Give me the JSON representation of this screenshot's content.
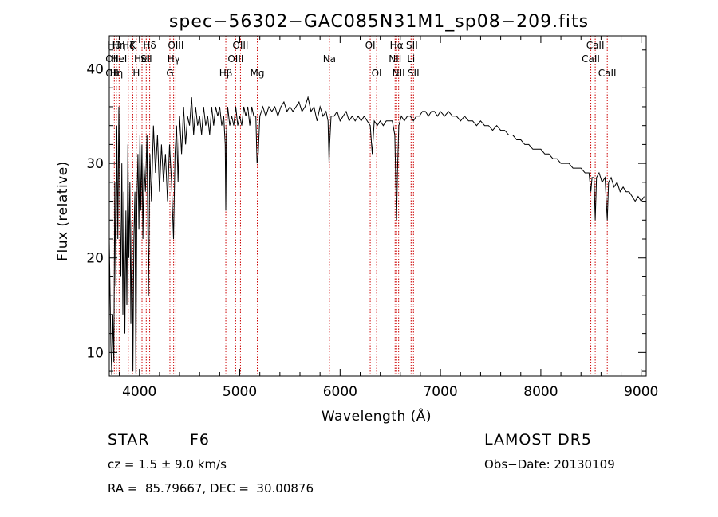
{
  "chart_data": {
    "type": "line",
    "title": "spec−56302−GAC085N31M1_sp08−209.fits",
    "xlabel": "Wavelength (Å)",
    "ylabel": "Flux (relative)",
    "xlim": [
      3700,
      9050
    ],
    "ylim": [
      7.5,
      43.5
    ],
    "xticks": [
      4000,
      5000,
      6000,
      7000,
      8000,
      9000
    ],
    "yticks": [
      10,
      20,
      30,
      40
    ],
    "grid": false,
    "series": [
      {
        "points": [
          [
            3700,
            22
          ],
          [
            3715,
            11
          ],
          [
            3725,
            7.6
          ],
          [
            3735,
            14
          ],
          [
            3745,
            9
          ],
          [
            3755,
            28
          ],
          [
            3765,
            17
          ],
          [
            3775,
            34
          ],
          [
            3785,
            22
          ],
          [
            3795,
            36
          ],
          [
            3805,
            26
          ],
          [
            3815,
            18
          ],
          [
            3825,
            30
          ],
          [
            3835,
            14
          ],
          [
            3845,
            27
          ],
          [
            3855,
            12
          ],
          [
            3865,
            25
          ],
          [
            3875,
            15
          ],
          [
            3885,
            32
          ],
          [
            3895,
            20
          ],
          [
            3905,
            28
          ],
          [
            3915,
            13
          ],
          [
            3925,
            24
          ],
          [
            3935,
            8
          ],
          [
            3945,
            22
          ],
          [
            3955,
            27
          ],
          [
            3965,
            7.8
          ],
          [
            3975,
            26
          ],
          [
            3985,
            31
          ],
          [
            3995,
            23
          ],
          [
            4005,
            33
          ],
          [
            4015,
            25
          ],
          [
            4025,
            32
          ],
          [
            4035,
            22
          ],
          [
            4045,
            30
          ],
          [
            4060,
            27
          ],
          [
            4075,
            33
          ],
          [
            4090,
            16
          ],
          [
            4105,
            31
          ],
          [
            4120,
            26
          ],
          [
            4140,
            34
          ],
          [
            4160,
            29
          ],
          [
            4180,
            33
          ],
          [
            4200,
            27
          ],
          [
            4220,
            32
          ],
          [
            4240,
            28
          ],
          [
            4260,
            31
          ],
          [
            4280,
            26
          ],
          [
            4300,
            32
          ],
          [
            4320,
            28
          ],
          [
            4340,
            22
          ],
          [
            4355,
            31
          ],
          [
            4370,
            34
          ],
          [
            4385,
            28
          ],
          [
            4400,
            35
          ],
          [
            4420,
            31
          ],
          [
            4440,
            36
          ],
          [
            4460,
            32
          ],
          [
            4480,
            35
          ],
          [
            4500,
            34
          ],
          [
            4520,
            37
          ],
          [
            4540,
            33
          ],
          [
            4560,
            36
          ],
          [
            4580,
            34
          ],
          [
            4600,
            35
          ],
          [
            4620,
            33
          ],
          [
            4640,
            36
          ],
          [
            4660,
            34
          ],
          [
            4680,
            35
          ],
          [
            4700,
            33
          ],
          [
            4720,
            36
          ],
          [
            4740,
            34
          ],
          [
            4760,
            36
          ],
          [
            4780,
            35
          ],
          [
            4800,
            36
          ],
          [
            4820,
            34
          ],
          [
            4840,
            35
          ],
          [
            4855,
            32
          ],
          [
            4861,
            25
          ],
          [
            4867,
            33
          ],
          [
            4880,
            36
          ],
          [
            4900,
            34
          ],
          [
            4920,
            35
          ],
          [
            4940,
            34
          ],
          [
            4960,
            36
          ],
          [
            4980,
            34
          ],
          [
            5000,
            35
          ],
          [
            5020,
            34
          ],
          [
            5040,
            36
          ],
          [
            5060,
            35
          ],
          [
            5080,
            36
          ],
          [
            5100,
            34
          ],
          [
            5120,
            36
          ],
          [
            5140,
            35
          ],
          [
            5160,
            35
          ],
          [
            5172,
            30
          ],
          [
            5184,
            31
          ],
          [
            5200,
            35
          ],
          [
            5230,
            36
          ],
          [
            5260,
            35
          ],
          [
            5290,
            36
          ],
          [
            5320,
            35.5
          ],
          [
            5350,
            36
          ],
          [
            5380,
            35
          ],
          [
            5410,
            36
          ],
          [
            5440,
            36.5
          ],
          [
            5470,
            35.5
          ],
          [
            5500,
            36
          ],
          [
            5530,
            35.5
          ],
          [
            5560,
            36
          ],
          [
            5590,
            36.5
          ],
          [
            5620,
            35.5
          ],
          [
            5650,
            36
          ],
          [
            5680,
            37
          ],
          [
            5710,
            35.5
          ],
          [
            5740,
            36
          ],
          [
            5770,
            34.5
          ],
          [
            5800,
            36
          ],
          [
            5830,
            35
          ],
          [
            5860,
            35.5
          ],
          [
            5880,
            34.5
          ],
          [
            5890,
            30
          ],
          [
            5896,
            32
          ],
          [
            5910,
            35
          ],
          [
            5940,
            35
          ],
          [
            5970,
            35.5
          ],
          [
            6000,
            34.5
          ],
          [
            6030,
            35
          ],
          [
            6060,
            35.5
          ],
          [
            6090,
            34.5
          ],
          [
            6120,
            35
          ],
          [
            6150,
            34.5
          ],
          [
            6180,
            35
          ],
          [
            6210,
            34.5
          ],
          [
            6240,
            35
          ],
          [
            6270,
            34.5
          ],
          [
            6300,
            34
          ],
          [
            6320,
            31
          ],
          [
            6340,
            34.5
          ],
          [
            6370,
            34
          ],
          [
            6400,
            34.5
          ],
          [
            6430,
            34
          ],
          [
            6460,
            34.5
          ],
          [
            6490,
            34.5
          ],
          [
            6520,
            34.5
          ],
          [
            6545,
            33
          ],
          [
            6555,
            28
          ],
          [
            6563,
            24
          ],
          [
            6571,
            29
          ],
          [
            6585,
            34
          ],
          [
            6610,
            35
          ],
          [
            6640,
            34.5
          ],
          [
            6670,
            35
          ],
          [
            6700,
            35
          ],
          [
            6730,
            34.5
          ],
          [
            6760,
            35
          ],
          [
            6790,
            35
          ],
          [
            6820,
            35.5
          ],
          [
            6850,
            35.5
          ],
          [
            6880,
            35
          ],
          [
            6910,
            35.5
          ],
          [
            6940,
            35.5
          ],
          [
            6970,
            35
          ],
          [
            7000,
            35.5
          ],
          [
            7040,
            35
          ],
          [
            7080,
            35.5
          ],
          [
            7120,
            35
          ],
          [
            7160,
            35
          ],
          [
            7200,
            34.5
          ],
          [
            7240,
            35
          ],
          [
            7280,
            34.5
          ],
          [
            7320,
            34.5
          ],
          [
            7360,
            34
          ],
          [
            7400,
            34.5
          ],
          [
            7440,
            34
          ],
          [
            7480,
            34
          ],
          [
            7520,
            33.5
          ],
          [
            7560,
            34
          ],
          [
            7600,
            33.5
          ],
          [
            7640,
            33.5
          ],
          [
            7680,
            33
          ],
          [
            7720,
            33
          ],
          [
            7760,
            32.5
          ],
          [
            7800,
            32.5
          ],
          [
            7840,
            32
          ],
          [
            7880,
            32
          ],
          [
            7920,
            31.5
          ],
          [
            7960,
            31.5
          ],
          [
            8000,
            31.5
          ],
          [
            8040,
            31
          ],
          [
            8080,
            31
          ],
          [
            8120,
            30.5
          ],
          [
            8160,
            30.5
          ],
          [
            8200,
            30
          ],
          [
            8240,
            30
          ],
          [
            8280,
            30
          ],
          [
            8320,
            29.5
          ],
          [
            8360,
            29.5
          ],
          [
            8400,
            29.5
          ],
          [
            8440,
            29
          ],
          [
            8480,
            29
          ],
          [
            8498,
            27
          ],
          [
            8510,
            28.5
          ],
          [
            8530,
            28.5
          ],
          [
            8542,
            24
          ],
          [
            8555,
            28.5
          ],
          [
            8580,
            29
          ],
          [
            8610,
            28
          ],
          [
            8640,
            28.5
          ],
          [
            8662,
            24
          ],
          [
            8675,
            28
          ],
          [
            8700,
            28.5
          ],
          [
            8730,
            27.5
          ],
          [
            8760,
            28
          ],
          [
            8790,
            27
          ],
          [
            8820,
            27.5
          ],
          [
            8850,
            27
          ],
          [
            8880,
            27
          ],
          [
            8910,
            26.5
          ],
          [
            8940,
            26
          ],
          [
            8970,
            26.5
          ],
          [
            9000,
            26
          ],
          [
            9030,
            26.5
          ]
        ]
      }
    ],
    "lines": [
      {
        "x": 3728,
        "labels": [
          "",
          "OII",
          "OII"
        ]
      },
      {
        "x": 3750,
        "labels": [
          "Hθ",
          "",
          ""
        ]
      },
      {
        "x": 3771,
        "labels": [
          "",
          "",
          "Hη"
        ]
      },
      {
        "x": 3798,
        "labels": [
          "Hη",
          "HeI",
          ""
        ]
      },
      {
        "x": 3889,
        "labels": [
          "Hζ",
          "",
          ""
        ]
      },
      {
        "x": 3934,
        "labels": [
          "K",
          "",
          ""
        ]
      },
      {
        "x": 3969,
        "labels": [
          "",
          "",
          "H"
        ]
      },
      {
        "x": 4026,
        "labels": [
          "",
          "HeI",
          ""
        ]
      },
      {
        "x": 4068,
        "labels": [
          "",
          "SII",
          ""
        ]
      },
      {
        "x": 4102,
        "labels": [
          "Hδ",
          "",
          ""
        ]
      },
      {
        "x": 4304,
        "labels": [
          "",
          "",
          "G"
        ]
      },
      {
        "x": 4341,
        "labels": [
          "",
          "Hγ",
          ""
        ]
      },
      {
        "x": 4363,
        "labels": [
          "OIII",
          "",
          ""
        ]
      },
      {
        "x": 4861,
        "labels": [
          "",
          "",
          "Hβ"
        ]
      },
      {
        "x": 4959,
        "labels": [
          "",
          "OIII",
          ""
        ]
      },
      {
        "x": 5007,
        "labels": [
          "OIII",
          "",
          ""
        ]
      },
      {
        "x": 5175,
        "labels": [
          "",
          "",
          "Mg"
        ]
      },
      {
        "x": 5893,
        "labels": [
          "",
          "Na",
          ""
        ]
      },
      {
        "x": 6300,
        "labels": [
          "OI",
          "",
          ""
        ]
      },
      {
        "x": 6364,
        "labels": [
          "",
          "",
          "OI"
        ]
      },
      {
        "x": 6548,
        "labels": [
          "",
          "NII",
          ""
        ]
      },
      {
        "x": 6563,
        "labels": [
          "Hα",
          "",
          ""
        ]
      },
      {
        "x": 6583,
        "labels": [
          "",
          "",
          "NII"
        ]
      },
      {
        "x": 6707,
        "labels": [
          "",
          "Li",
          ""
        ]
      },
      {
        "x": 6716,
        "labels": [
          "SII",
          "",
          ""
        ]
      },
      {
        "x": 6731,
        "labels": [
          "",
          "",
          "SII"
        ]
      },
      {
        "x": 8498,
        "labels": [
          "",
          "CaII",
          ""
        ]
      },
      {
        "x": 8542,
        "labels": [
          "CaII",
          "",
          ""
        ]
      },
      {
        "x": 8662,
        "labels": [
          "",
          "",
          "CaII"
        ]
      }
    ]
  },
  "info": {
    "object_class": "STAR",
    "subclass": "F6",
    "cz_line": "cz = 1.5 ± 9.0 km/s",
    "coords_line": "RA =  85.79667, DEC =  30.00876",
    "survey": "LAMOST DR5",
    "obs_date_line": "Obs−Date: 20130109"
  }
}
